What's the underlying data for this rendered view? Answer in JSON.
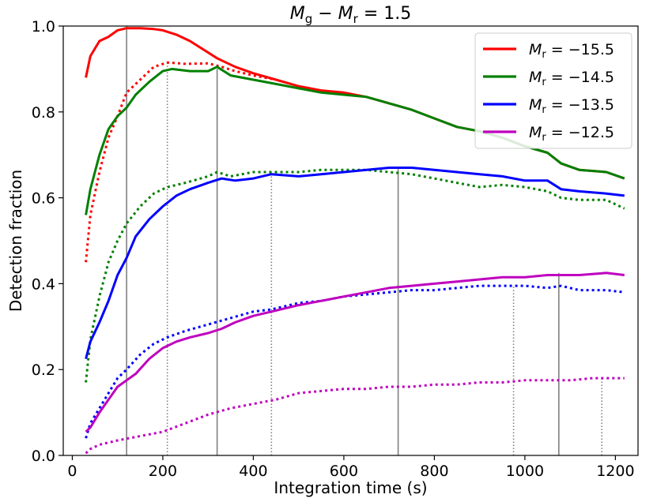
{
  "chart_data": {
    "type": "line",
    "title": "M_g − M_r = 1.5",
    "title_parts": {
      "a": "M",
      "a_sub": "g",
      "op": " − ",
      "b": "M",
      "b_sub": "r",
      "eq": " = 1.5"
    },
    "xlabel": "Integration time (s)",
    "ylabel": "Detection fraction",
    "xlim": [
      -20,
      1250
    ],
    "ylim": [
      0,
      1.0
    ],
    "xticks": [
      0,
      200,
      400,
      600,
      800,
      1000,
      1200
    ],
    "yticks": [
      0.0,
      0.2,
      0.4,
      0.6,
      0.8,
      1.0
    ],
    "xtick_labels": [
      "0",
      "200",
      "400",
      "600",
      "800",
      "1000",
      "1200"
    ],
    "ytick_labels": [
      "0.0",
      "0.2",
      "0.4",
      "0.6",
      "0.8",
      "1.0"
    ],
    "legend_position": "top-right",
    "grid": false,
    "series": [
      {
        "name": "M_r = −15.5",
        "label_main": "M",
        "label_sub": "r",
        "label_val": " = −15.5",
        "color": "#ff0000",
        "style": "solid",
        "points": [
          [
            30,
            0.88
          ],
          [
            40,
            0.93
          ],
          [
            60,
            0.965
          ],
          [
            80,
            0.975
          ],
          [
            100,
            0.99
          ],
          [
            120,
            0.995
          ],
          [
            150,
            0.995
          ],
          [
            180,
            0.993
          ],
          [
            200,
            0.99
          ],
          [
            230,
            0.98
          ],
          [
            260,
            0.965
          ],
          [
            290,
            0.945
          ],
          [
            320,
            0.925
          ],
          [
            360,
            0.905
          ],
          [
            400,
            0.89
          ],
          [
            450,
            0.875
          ],
          [
            500,
            0.86
          ],
          [
            550,
            0.85
          ],
          [
            600,
            0.845
          ],
          [
            650,
            0.835
          ],
          [
            700,
            0.82
          ],
          [
            750,
            0.805
          ],
          [
            800,
            0.785
          ],
          [
            850,
            0.765
          ],
          [
            900,
            0.755
          ],
          [
            950,
            0.74
          ],
          [
            1000,
            0.72
          ],
          [
            1050,
            0.705
          ],
          [
            1080,
            0.68
          ],
          [
            1120,
            0.665
          ],
          [
            1180,
            0.66
          ],
          [
            1220,
            0.645
          ]
        ]
      },
      {
        "name": "M_r = −15.5 (dotted)",
        "color": "#ff0000",
        "style": "dotted",
        "points": [
          [
            30,
            0.45
          ],
          [
            40,
            0.56
          ],
          [
            60,
            0.66
          ],
          [
            80,
            0.74
          ],
          [
            100,
            0.79
          ],
          [
            120,
            0.845
          ],
          [
            150,
            0.875
          ],
          [
            180,
            0.905
          ],
          [
            210,
            0.915
          ],
          [
            250,
            0.912
          ],
          [
            300,
            0.913
          ],
          [
            330,
            0.905
          ],
          [
            360,
            0.895
          ],
          [
            400,
            0.885
          ],
          [
            450,
            0.875
          ]
        ]
      },
      {
        "name": "M_r = −14.5",
        "label_main": "M",
        "label_sub": "r",
        "label_val": " = −14.5",
        "color": "#008000",
        "style": "solid",
        "points": [
          [
            30,
            0.56
          ],
          [
            40,
            0.62
          ],
          [
            60,
            0.7
          ],
          [
            80,
            0.76
          ],
          [
            100,
            0.79
          ],
          [
            120,
            0.81
          ],
          [
            140,
            0.84
          ],
          [
            170,
            0.87
          ],
          [
            200,
            0.895
          ],
          [
            220,
            0.9
          ],
          [
            260,
            0.895
          ],
          [
            300,
            0.895
          ],
          [
            320,
            0.905
          ],
          [
            350,
            0.885
          ],
          [
            400,
            0.875
          ],
          [
            450,
            0.865
          ],
          [
            500,
            0.855
          ],
          [
            550,
            0.845
          ],
          [
            600,
            0.84
          ],
          [
            650,
            0.835
          ],
          [
            700,
            0.82
          ],
          [
            750,
            0.805
          ],
          [
            800,
            0.785
          ],
          [
            850,
            0.765
          ],
          [
            900,
            0.755
          ],
          [
            950,
            0.74
          ],
          [
            1000,
            0.72
          ],
          [
            1050,
            0.705
          ],
          [
            1080,
            0.68
          ],
          [
            1120,
            0.665
          ],
          [
            1180,
            0.66
          ],
          [
            1220,
            0.645
          ]
        ]
      },
      {
        "name": "M_r = −14.5 (dotted)",
        "color": "#008000",
        "style": "dotted",
        "points": [
          [
            30,
            0.17
          ],
          [
            40,
            0.27
          ],
          [
            60,
            0.37
          ],
          [
            80,
            0.45
          ],
          [
            100,
            0.5
          ],
          [
            120,
            0.54
          ],
          [
            150,
            0.58
          ],
          [
            180,
            0.61
          ],
          [
            210,
            0.625
          ],
          [
            250,
            0.635
          ],
          [
            300,
            0.65
          ],
          [
            320,
            0.66
          ],
          [
            350,
            0.65
          ],
          [
            400,
            0.66
          ],
          [
            440,
            0.66
          ],
          [
            500,
            0.66
          ],
          [
            550,
            0.665
          ],
          [
            600,
            0.665
          ],
          [
            650,
            0.665
          ],
          [
            700,
            0.66
          ],
          [
            750,
            0.655
          ],
          [
            800,
            0.645
          ],
          [
            850,
            0.635
          ],
          [
            900,
            0.625
          ],
          [
            950,
            0.63
          ],
          [
            1000,
            0.625
          ],
          [
            1050,
            0.615
          ],
          [
            1080,
            0.6
          ],
          [
            1120,
            0.595
          ],
          [
            1180,
            0.595
          ],
          [
            1220,
            0.575
          ]
        ]
      },
      {
        "name": "M_r = −13.5",
        "label_main": "M",
        "label_sub": "r",
        "label_val": " = −13.5",
        "color": "#0000ff",
        "style": "solid",
        "points": [
          [
            30,
            0.225
          ],
          [
            40,
            0.265
          ],
          [
            60,
            0.31
          ],
          [
            80,
            0.36
          ],
          [
            100,
            0.42
          ],
          [
            120,
            0.46
          ],
          [
            140,
            0.51
          ],
          [
            170,
            0.55
          ],
          [
            200,
            0.58
          ],
          [
            230,
            0.605
          ],
          [
            260,
            0.62
          ],
          [
            300,
            0.635
          ],
          [
            330,
            0.645
          ],
          [
            360,
            0.64
          ],
          [
            400,
            0.645
          ],
          [
            440,
            0.655
          ],
          [
            500,
            0.65
          ],
          [
            550,
            0.655
          ],
          [
            600,
            0.66
          ],
          [
            650,
            0.665
          ],
          [
            700,
            0.67
          ],
          [
            750,
            0.67
          ],
          [
            800,
            0.665
          ],
          [
            850,
            0.66
          ],
          [
            900,
            0.655
          ],
          [
            950,
            0.65
          ],
          [
            1000,
            0.64
          ],
          [
            1050,
            0.64
          ],
          [
            1080,
            0.62
          ],
          [
            1120,
            0.615
          ],
          [
            1180,
            0.61
          ],
          [
            1220,
            0.605
          ]
        ]
      },
      {
        "name": "M_r = −13.5 (dotted)",
        "color": "#0000ff",
        "style": "dotted",
        "points": [
          [
            30,
            0.04
          ],
          [
            40,
            0.075
          ],
          [
            60,
            0.11
          ],
          [
            80,
            0.145
          ],
          [
            100,
            0.18
          ],
          [
            120,
            0.2
          ],
          [
            150,
            0.235
          ],
          [
            180,
            0.26
          ],
          [
            210,
            0.275
          ],
          [
            250,
            0.29
          ],
          [
            300,
            0.305
          ],
          [
            350,
            0.32
          ],
          [
            400,
            0.335
          ],
          [
            440,
            0.34
          ],
          [
            500,
            0.355
          ],
          [
            550,
            0.36
          ],
          [
            600,
            0.37
          ],
          [
            650,
            0.375
          ],
          [
            700,
            0.38
          ],
          [
            750,
            0.385
          ],
          [
            800,
            0.385
          ],
          [
            850,
            0.39
          ],
          [
            900,
            0.395
          ],
          [
            950,
            0.395
          ],
          [
            1000,
            0.395
          ],
          [
            1050,
            0.39
          ],
          [
            1080,
            0.395
          ],
          [
            1120,
            0.385
          ],
          [
            1180,
            0.385
          ],
          [
            1220,
            0.38
          ]
        ]
      },
      {
        "name": "M_r = −12.5",
        "label_main": "M",
        "label_sub": "r",
        "label_val": " = −12.5",
        "color": "#bf00bf",
        "style": "solid",
        "points": [
          [
            30,
            0.055
          ],
          [
            40,
            0.065
          ],
          [
            60,
            0.1
          ],
          [
            80,
            0.13
          ],
          [
            100,
            0.16
          ],
          [
            120,
            0.175
          ],
          [
            140,
            0.19
          ],
          [
            170,
            0.225
          ],
          [
            200,
            0.25
          ],
          [
            230,
            0.265
          ],
          [
            260,
            0.275
          ],
          [
            300,
            0.285
          ],
          [
            330,
            0.295
          ],
          [
            360,
            0.31
          ],
          [
            400,
            0.325
          ],
          [
            440,
            0.335
          ],
          [
            500,
            0.35
          ],
          [
            550,
            0.36
          ],
          [
            600,
            0.37
          ],
          [
            650,
            0.38
          ],
          [
            700,
            0.39
          ],
          [
            750,
            0.395
          ],
          [
            800,
            0.4
          ],
          [
            850,
            0.405
          ],
          [
            900,
            0.41
          ],
          [
            950,
            0.415
          ],
          [
            1000,
            0.415
          ],
          [
            1050,
            0.42
          ],
          [
            1080,
            0.42
          ],
          [
            1120,
            0.42
          ],
          [
            1180,
            0.425
          ],
          [
            1220,
            0.42
          ]
        ]
      },
      {
        "name": "M_r = −12.5 (dotted)",
        "color": "#bf00bf",
        "style": "dotted",
        "points": [
          [
            30,
            0.005
          ],
          [
            40,
            0.015
          ],
          [
            60,
            0.025
          ],
          [
            100,
            0.035
          ],
          [
            150,
            0.045
          ],
          [
            200,
            0.055
          ],
          [
            250,
            0.075
          ],
          [
            300,
            0.095
          ],
          [
            350,
            0.11
          ],
          [
            400,
            0.12
          ],
          [
            450,
            0.13
          ],
          [
            500,
            0.145
          ],
          [
            550,
            0.15
          ],
          [
            600,
            0.155
          ],
          [
            650,
            0.155
          ],
          [
            700,
            0.16
          ],
          [
            750,
            0.16
          ],
          [
            800,
            0.165
          ],
          [
            850,
            0.165
          ],
          [
            900,
            0.17
          ],
          [
            950,
            0.17
          ],
          [
            1000,
            0.175
          ],
          [
            1050,
            0.175
          ],
          [
            1100,
            0.175
          ],
          [
            1150,
            0.18
          ],
          [
            1220,
            0.18
          ]
        ]
      }
    ],
    "vlines": [
      {
        "x": 120,
        "y_top": 1.0,
        "style": "solid"
      },
      {
        "x": 210,
        "y_top": 0.915,
        "style": "dotted"
      },
      {
        "x": 320,
        "y_top": 0.9,
        "style": "solid"
      },
      {
        "x": 440,
        "y_top": 0.66,
        "style": "dotted"
      },
      {
        "x": 720,
        "y_top": 0.67,
        "style": "solid"
      },
      {
        "x": 975,
        "y_top": 0.395,
        "style": "dotted"
      },
      {
        "x": 1075,
        "y_top": 0.425,
        "style": "solid"
      },
      {
        "x": 1170,
        "y_top": 0.18,
        "style": "dotted"
      }
    ]
  }
}
